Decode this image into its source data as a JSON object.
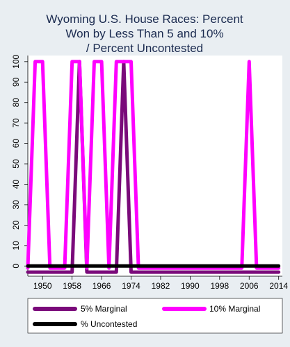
{
  "chart_data": {
    "type": "line",
    "title_lines": [
      "Wyoming U.S. House Races: Percent",
      "Won by Less Than 5 and 10%",
      "/ Percent Uncontested"
    ],
    "xlabel": "",
    "ylabel": "",
    "xlim": [
      1946,
      2015
    ],
    "ylim": [
      -5,
      103
    ],
    "x_ticks": [
      1950,
      1958,
      1966,
      1974,
      1982,
      1990,
      1998,
      2006,
      2014
    ],
    "y_ticks": [
      0,
      10,
      20,
      30,
      40,
      50,
      60,
      70,
      80,
      90,
      100
    ],
    "grid": false,
    "legend_position": "bottom",
    "series": [
      {
        "name": "5% Marginal",
        "color": "#7a0a7a",
        "points": [
          [
            1946,
            -3
          ],
          [
            1948,
            -3
          ],
          [
            1950,
            -3
          ],
          [
            1952,
            -3
          ],
          [
            1954,
            -3
          ],
          [
            1956,
            -3
          ],
          [
            1958,
            -3
          ],
          [
            1960,
            100
          ],
          [
            1962,
            -3
          ],
          [
            1964,
            -3
          ],
          [
            1966,
            -3
          ],
          [
            1968,
            -3
          ],
          [
            1970,
            -3
          ],
          [
            1972,
            100
          ],
          [
            1974,
            -3
          ],
          [
            1976,
            -3
          ],
          [
            1978,
            -3
          ],
          [
            1980,
            -3
          ],
          [
            1982,
            -3
          ],
          [
            1984,
            -3
          ],
          [
            1986,
            -3
          ],
          [
            1988,
            -3
          ],
          [
            1990,
            -3
          ],
          [
            1992,
            -3
          ],
          [
            1994,
            -3
          ],
          [
            1996,
            -3
          ],
          [
            1998,
            -3
          ],
          [
            2000,
            -3
          ],
          [
            2002,
            -3
          ],
          [
            2004,
            -3
          ],
          [
            2006,
            -3
          ],
          [
            2008,
            -3
          ],
          [
            2010,
            -3
          ],
          [
            2012,
            -3
          ],
          [
            2014,
            -3
          ]
        ]
      },
      {
        "name": "10% Marginal",
        "color": "#ff00ff",
        "points": [
          [
            1946,
            -1
          ],
          [
            1948,
            100
          ],
          [
            1950,
            100
          ],
          [
            1952,
            -1
          ],
          [
            1954,
            -1
          ],
          [
            1956,
            -1
          ],
          [
            1958,
            100
          ],
          [
            1960,
            100
          ],
          [
            1962,
            -1
          ],
          [
            1964,
            100
          ],
          [
            1966,
            100
          ],
          [
            1968,
            -1
          ],
          [
            1970,
            100
          ],
          [
            1972,
            100
          ],
          [
            1974,
            100
          ],
          [
            1976,
            -1
          ],
          [
            1978,
            -1
          ],
          [
            1980,
            -1
          ],
          [
            1982,
            -1
          ],
          [
            1984,
            -1
          ],
          [
            1986,
            -1
          ],
          [
            1988,
            -1
          ],
          [
            1990,
            -1
          ],
          [
            1992,
            -1
          ],
          [
            1994,
            -1
          ],
          [
            1996,
            -1
          ],
          [
            1998,
            -1
          ],
          [
            2000,
            -1
          ],
          [
            2002,
            -1
          ],
          [
            2004,
            -1
          ],
          [
            2006,
            100
          ],
          [
            2008,
            -1
          ],
          [
            2010,
            -1
          ],
          [
            2012,
            -1
          ],
          [
            2014,
            -1
          ]
        ]
      },
      {
        "name": "% Uncontested",
        "color": "#000000",
        "points": [
          [
            1946,
            0
          ],
          [
            2014,
            0
          ]
        ]
      }
    ]
  }
}
